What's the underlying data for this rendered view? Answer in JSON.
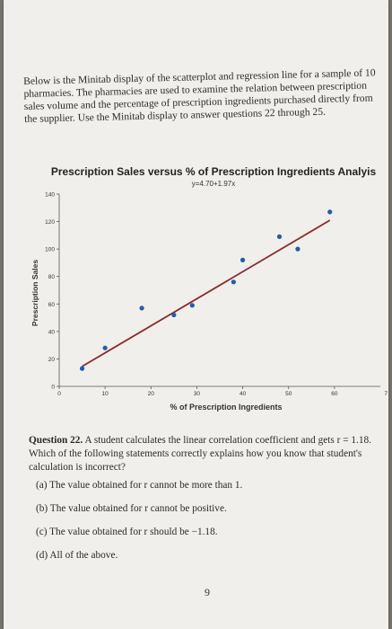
{
  "intro": {
    "text": "Below is the Minitab display of the scatterplot and regression line for a sample of 10 pharmacies. The pharmacies are used to examine the relation between prescription sales volume and the percentage of prescription ingredients purchased directly from the supplier. Use the Minitab display to answer questions 22 through 25."
  },
  "chart_data": {
    "type": "scatter",
    "title": "Prescription Sales versus % of Prescription Ingredients Analyis",
    "subtitle": "y=4.70+1.97x",
    "xlabel": "% of Prescription Ingredients",
    "ylabel": "Prescription Sales",
    "xlim": [
      0,
      70
    ],
    "ylim": [
      0,
      140
    ],
    "x_ticks": [
      0,
      10,
      20,
      30,
      40,
      50,
      60
    ],
    "x_tick_labels": [
      "0",
      "10",
      "20",
      "30",
      "40",
      "50",
      "60"
    ],
    "y_ticks": [
      0,
      20,
      40,
      60,
      80,
      100,
      120,
      140
    ],
    "y_tick_labels": [
      "0",
      "20",
      "40",
      "60",
      "80",
      "100",
      "120",
      "140"
    ],
    "edge_label": "7",
    "points": {
      "x": [
        5,
        10,
        18,
        25,
        29,
        38,
        40,
        48,
        52,
        59
      ],
      "y": [
        13,
        28,
        57,
        52,
        59,
        76,
        92,
        109,
        100,
        127
      ]
    },
    "regression": {
      "intercept": 4.7,
      "slope": 1.97,
      "x_range": [
        5,
        59
      ]
    },
    "point_color": "#1f5ea8",
    "line_color": "#8b2a2a",
    "grid": false
  },
  "question": {
    "label": "Question 22.",
    "text": "A student calculates the linear correlation coefficient and gets r = 1.18. Which of the following statements correctly explains how you know that student's calculation is incorrect?",
    "options": [
      "(a)  The value obtained for r cannot be more than 1.",
      "(b)  The value obtained for r cannot be positive.",
      "(c)  The value obtained for r should be −1.18.",
      "(d)  All of the above."
    ]
  },
  "page_number": "9"
}
